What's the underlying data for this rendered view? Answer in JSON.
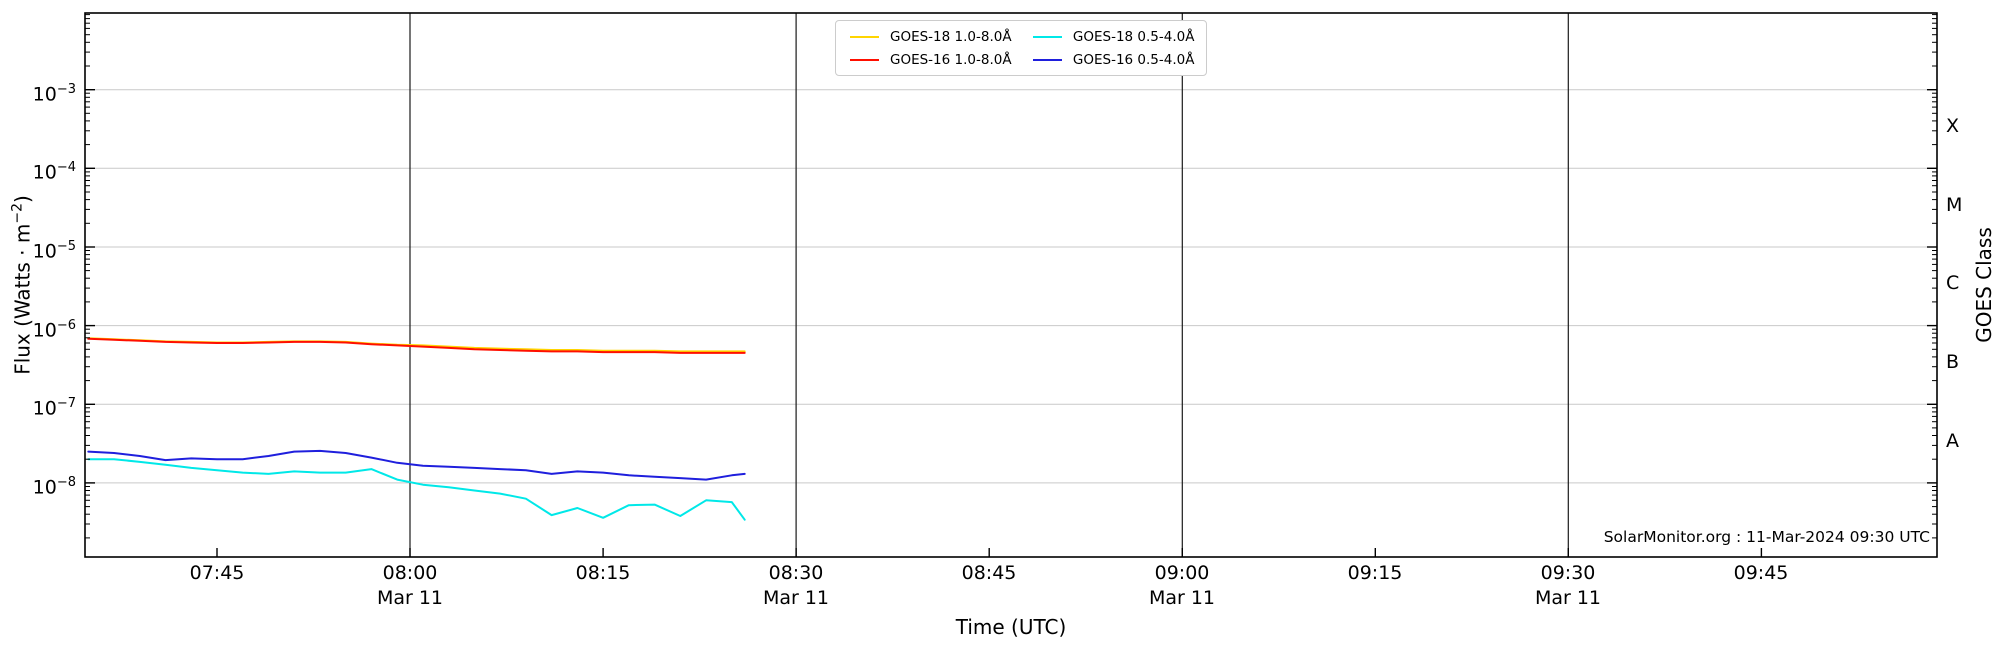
{
  "page": {
    "credit": "SolarMonitor.org : 11-Mar-2024 09:30 UTC"
  },
  "chart_data": {
    "type": "line",
    "title": "",
    "xlabel": "Time (UTC)",
    "ylabel": {
      "pre": "Flux (Watts · m",
      "sup": "−2",
      "post": ")"
    },
    "right_axis_label": "GOES Class",
    "x_date_label": "Mar 11",
    "y_scale": "log",
    "xlim": [
      "07:35",
      "09:59"
    ],
    "ylim": [
      1e-09,
      0.01
    ],
    "grid": {
      "horizontal": "decades-light-gray",
      "vertical": "half-hours-black"
    },
    "legend_position": "top-center",
    "y_tick_exponents": [
      -3,
      -4,
      -5,
      -6,
      -7,
      -8
    ],
    "x_ticks": [
      {
        "time": "07:45",
        "label": "07:45",
        "grid": false,
        "date": false
      },
      {
        "time": "08:00",
        "label": "08:00",
        "grid": true,
        "date": true
      },
      {
        "time": "08:15",
        "label": "08:15",
        "grid": false,
        "date": false
      },
      {
        "time": "08:30",
        "label": "08:30",
        "grid": true,
        "date": true
      },
      {
        "time": "08:45",
        "label": "08:45",
        "grid": false,
        "date": false
      },
      {
        "time": "09:00",
        "label": "09:00",
        "grid": true,
        "date": true
      },
      {
        "time": "09:15",
        "label": "09:15",
        "grid": false,
        "date": false
      },
      {
        "time": "09:30",
        "label": "09:30",
        "grid": true,
        "date": true
      },
      {
        "time": "09:45",
        "label": "09:45",
        "grid": false,
        "date": false
      }
    ],
    "goes_classes": [
      {
        "label": "X",
        "log_center": -3.5
      },
      {
        "label": "M",
        "log_center": -4.5
      },
      {
        "label": "C",
        "log_center": -5.5
      },
      {
        "label": "B",
        "log_center": -6.5
      },
      {
        "label": "A",
        "log_center": -7.5
      }
    ],
    "times": [
      "07:35",
      "07:37",
      "07:39",
      "07:41",
      "07:43",
      "07:45",
      "07:47",
      "07:49",
      "07:51",
      "07:53",
      "07:55",
      "07:57",
      "07:59",
      "08:01",
      "08:03",
      "08:05",
      "08:07",
      "08:09",
      "08:11",
      "08:13",
      "08:15",
      "08:17",
      "08:19",
      "08:21",
      "08:23",
      "08:25",
      "08:26"
    ],
    "series": [
      {
        "name": "GOES-18 1.0-8.0Å",
        "color": "#ffd500",
        "values": [
          6.9e-07,
          6.7e-07,
          6.5e-07,
          6.3e-07,
          6.2e-07,
          6.1e-07,
          6.1e-07,
          6.2e-07,
          6.3e-07,
          6.3e-07,
          6.2e-07,
          5.9e-07,
          5.7e-07,
          5.6e-07,
          5.4e-07,
          5.2e-07,
          5.1e-07,
          5e-07,
          4.9e-07,
          4.9e-07,
          4.8e-07,
          4.8e-07,
          4.8e-07,
          4.7e-07,
          4.7e-07,
          4.7e-07,
          4.7e-07
        ]
      },
      {
        "name": "GOES-16 1.0-8.0Å",
        "color": "#ff0f00",
        "values": [
          6.8e-07,
          6.6e-07,
          6.4e-07,
          6.2e-07,
          6.1e-07,
          6e-07,
          6e-07,
          6.1e-07,
          6.2e-07,
          6.2e-07,
          6.1e-07,
          5.8e-07,
          5.6e-07,
          5.4e-07,
          5.2e-07,
          5e-07,
          4.9e-07,
          4.8e-07,
          4.7e-07,
          4.7e-07,
          4.6e-07,
          4.6e-07,
          4.6e-07,
          4.5e-07,
          4.5e-07,
          4.5e-07,
          4.5e-07
        ]
      },
      {
        "name": "GOES-18 0.5-4.0Å",
        "color": "#00e8e8",
        "values": [
          2e-08,
          2e-08,
          1.85e-08,
          1.7e-08,
          1.55e-08,
          1.45e-08,
          1.35e-08,
          1.3e-08,
          1.4e-08,
          1.35e-08,
          1.35e-08,
          1.5e-08,
          1.1e-08,
          9.5e-09,
          8.8e-09,
          8e-09,
          7.3e-09,
          6.3e-09,
          3.9e-09,
          4.8e-09,
          3.6e-09,
          5.2e-09,
          5.3e-09,
          3.8e-09,
          6e-09,
          5.7e-09,
          3.4e-09
        ]
      },
      {
        "name": "GOES-16 0.5-4.0Å",
        "color": "#1f1fdd",
        "values": [
          2.5e-08,
          2.4e-08,
          2.2e-08,
          1.95e-08,
          2.05e-08,
          2e-08,
          2e-08,
          2.2e-08,
          2.5e-08,
          2.55e-08,
          2.4e-08,
          2.1e-08,
          1.8e-08,
          1.65e-08,
          1.6e-08,
          1.55e-08,
          1.5e-08,
          1.45e-08,
          1.3e-08,
          1.4e-08,
          1.35e-08,
          1.25e-08,
          1.2e-08,
          1.15e-08,
          1.1e-08,
          1.25e-08,
          1.3e-08
        ]
      }
    ]
  }
}
